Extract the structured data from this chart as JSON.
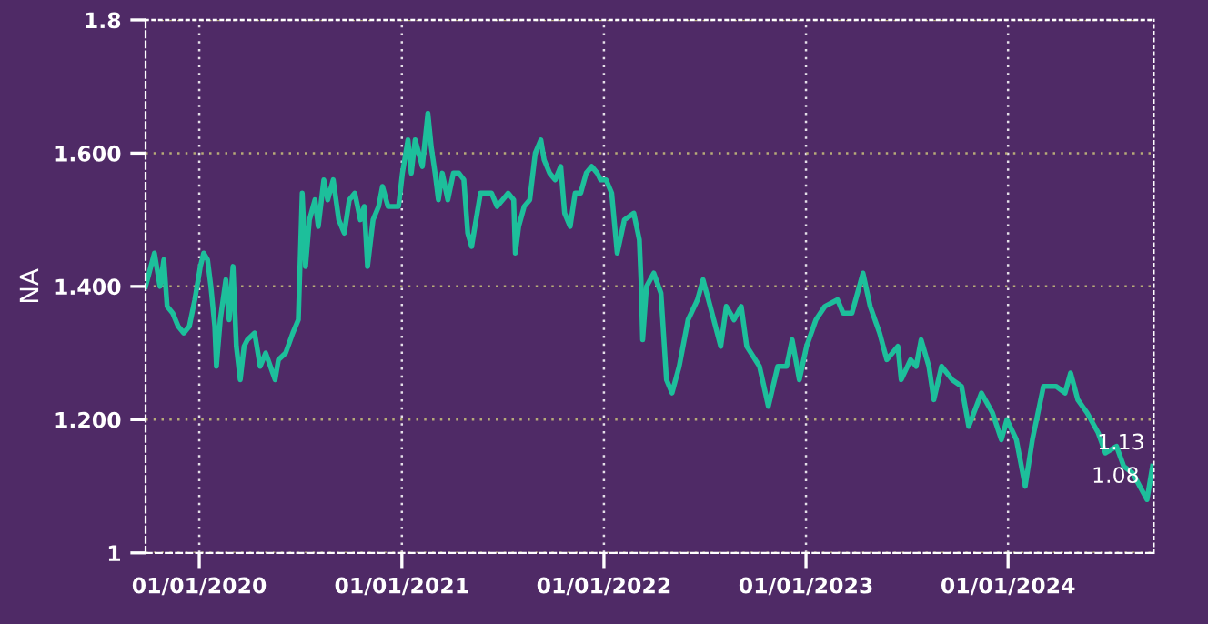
{
  "chart_data": {
    "type": "line",
    "ylabel": "NA",
    "grid": true,
    "xlim": [
      "2019-09-26",
      "2024-09-20"
    ],
    "xticks": [
      {
        "value": "2020-01-01",
        "label": "01/01/2020"
      },
      {
        "value": "2021-01-01",
        "label": "01/01/2021"
      },
      {
        "value": "2022-01-01",
        "label": "01/01/2022"
      },
      {
        "value": "2023-01-01",
        "label": "01/01/2023"
      },
      {
        "value": "2024-01-01",
        "label": "01/01/2024"
      }
    ],
    "ylim": [
      1,
      1.8
    ],
    "yticks": [
      1,
      {
        "value": 1.2,
        "label": "1.200"
      },
      {
        "value": 1.4,
        "label": "1.400"
      },
      {
        "value": 1.6,
        "label": "1.600"
      },
      1.8
    ],
    "annotations": [
      {
        "text": "1.13",
        "x": "2024-09-18",
        "y": 1.13
      },
      {
        "text": "1.08",
        "x": "2024-09-08",
        "y": 1.08
      }
    ],
    "series": [
      {
        "color": "#1dbf9b",
        "x": [
          "2019-09-26",
          "2019-10-12",
          "2019-10-22",
          "2019-10-29",
          "2019-11-04",
          "2019-11-14",
          "2019-11-24",
          "2019-12-04",
          "2019-12-14",
          "2019-12-24",
          "2020-01-03",
          "2020-01-09",
          "2020-01-16",
          "2020-01-22",
          "2020-01-29",
          "2020-02-01",
          "2020-02-08",
          "2020-02-18",
          "2020-02-24",
          "2020-03-02",
          "2020-03-08",
          "2020-03-15",
          "2020-03-22",
          "2020-03-28",
          "2020-04-10",
          "2020-04-20",
          "2020-04-30",
          "2020-05-17",
          "2020-05-23",
          "2020-06-05",
          "2020-06-18",
          "2020-06-28",
          "2020-07-05",
          "2020-07-11",
          "2020-07-18",
          "2020-07-28",
          "2020-08-03",
          "2020-08-13",
          "2020-08-20",
          "2020-08-30",
          "2020-09-09",
          "2020-09-19",
          "2020-09-28",
          "2020-10-08",
          "2020-10-18",
          "2020-10-25",
          "2020-10-31",
          "2020-11-10",
          "2020-11-20",
          "2020-11-27",
          "2020-12-07",
          "2020-12-16",
          "2020-12-26",
          "2021-01-02",
          "2021-01-12",
          "2021-01-18",
          "2021-01-25",
          "2021-02-07",
          "2021-02-17",
          "2021-02-23",
          "2021-03-02",
          "2021-03-08",
          "2021-03-15",
          "2021-03-25",
          "2021-04-04",
          "2021-04-14",
          "2021-04-23",
          "2021-04-30",
          "2021-05-07",
          "2021-05-17",
          "2021-05-23",
          "2021-06-02",
          "2021-06-12",
          "2021-06-22",
          "2021-07-02",
          "2021-07-12",
          "2021-07-22",
          "2021-07-25",
          "2021-07-31",
          "2021-08-10",
          "2021-08-20",
          "2021-08-30",
          "2021-09-09",
          "2021-09-15",
          "2021-09-25",
          "2021-10-05",
          "2021-10-15",
          "2021-10-22",
          "2021-11-01",
          "2021-11-10",
          "2021-11-20",
          "2021-11-30",
          "2021-12-10",
          "2021-12-20",
          "2021-12-26",
          "2022-01-05",
          "2022-01-15",
          "2022-01-25",
          "2022-02-07",
          "2022-02-24",
          "2022-03-06",
          "2022-03-09",
          "2022-03-12",
          "2022-03-19",
          "2022-04-01",
          "2022-04-14",
          "2022-04-24",
          "2022-05-04",
          "2022-05-17",
          "2022-06-02",
          "2022-06-19",
          "2022-06-29",
          "2022-07-12",
          "2022-07-31",
          "2022-08-10",
          "2022-08-24",
          "2022-09-06",
          "2022-09-16",
          "2022-10-09",
          "2022-10-25",
          "2022-11-11",
          "2022-11-27",
          "2022-12-07",
          "2022-12-20",
          "2023-01-02",
          "2023-01-19",
          "2023-02-04",
          "2023-02-27",
          "2023-03-09",
          "2023-03-25",
          "2023-04-14",
          "2023-04-27",
          "2023-05-14",
          "2023-05-27",
          "2023-06-16",
          "2023-06-22",
          "2023-07-09",
          "2023-07-19",
          "2023-07-28",
          "2023-08-11",
          "2023-08-20",
          "2023-09-03",
          "2023-09-22",
          "2023-10-09",
          "2023-10-22",
          "2023-11-14",
          "2023-12-04",
          "2023-12-20",
          "2023-12-30",
          "2024-01-16",
          "2024-02-01",
          "2024-02-14",
          "2024-03-05",
          "2024-03-28",
          "2024-04-13",
          "2024-04-23",
          "2024-05-06",
          "2024-05-23",
          "2024-06-12",
          "2024-06-25",
          "2024-07-15",
          "2024-07-28",
          "2024-08-13",
          "2024-09-08",
          "2024-09-18"
        ],
        "values": [
          1.4,
          1.45,
          1.4,
          1.44,
          1.37,
          1.36,
          1.34,
          1.33,
          1.34,
          1.38,
          1.43,
          1.45,
          1.44,
          1.4,
          1.34,
          1.28,
          1.35,
          1.41,
          1.35,
          1.43,
          1.31,
          1.26,
          1.31,
          1.32,
          1.33,
          1.28,
          1.3,
          1.26,
          1.29,
          1.3,
          1.33,
          1.35,
          1.54,
          1.43,
          1.5,
          1.53,
          1.49,
          1.56,
          1.53,
          1.56,
          1.5,
          1.48,
          1.53,
          1.54,
          1.5,
          1.52,
          1.43,
          1.5,
          1.52,
          1.55,
          1.52,
          1.52,
          1.52,
          1.57,
          1.62,
          1.57,
          1.62,
          1.58,
          1.66,
          1.61,
          1.57,
          1.53,
          1.57,
          1.53,
          1.57,
          1.57,
          1.56,
          1.48,
          1.46,
          1.51,
          1.54,
          1.54,
          1.54,
          1.52,
          1.53,
          1.54,
          1.53,
          1.45,
          1.49,
          1.52,
          1.53,
          1.6,
          1.62,
          1.59,
          1.57,
          1.56,
          1.58,
          1.51,
          1.49,
          1.54,
          1.54,
          1.57,
          1.58,
          1.57,
          1.56,
          1.56,
          1.54,
          1.45,
          1.5,
          1.51,
          1.47,
          1.41,
          1.32,
          1.4,
          1.42,
          1.39,
          1.26,
          1.24,
          1.28,
          1.35,
          1.38,
          1.41,
          1.37,
          1.31,
          1.37,
          1.35,
          1.37,
          1.31,
          1.28,
          1.22,
          1.28,
          1.28,
          1.32,
          1.26,
          1.31,
          1.35,
          1.37,
          1.38,
          1.36,
          1.36,
          1.42,
          1.37,
          1.33,
          1.29,
          1.31,
          1.26,
          1.29,
          1.28,
          1.32,
          1.28,
          1.23,
          1.28,
          1.26,
          1.25,
          1.19,
          1.24,
          1.21,
          1.17,
          1.2,
          1.17,
          1.1,
          1.17,
          1.25,
          1.25,
          1.24,
          1.27,
          1.23,
          1.21,
          1.18,
          1.15,
          1.16,
          1.13,
          1.12,
          1.08,
          1.13
        ]
      }
    ]
  }
}
